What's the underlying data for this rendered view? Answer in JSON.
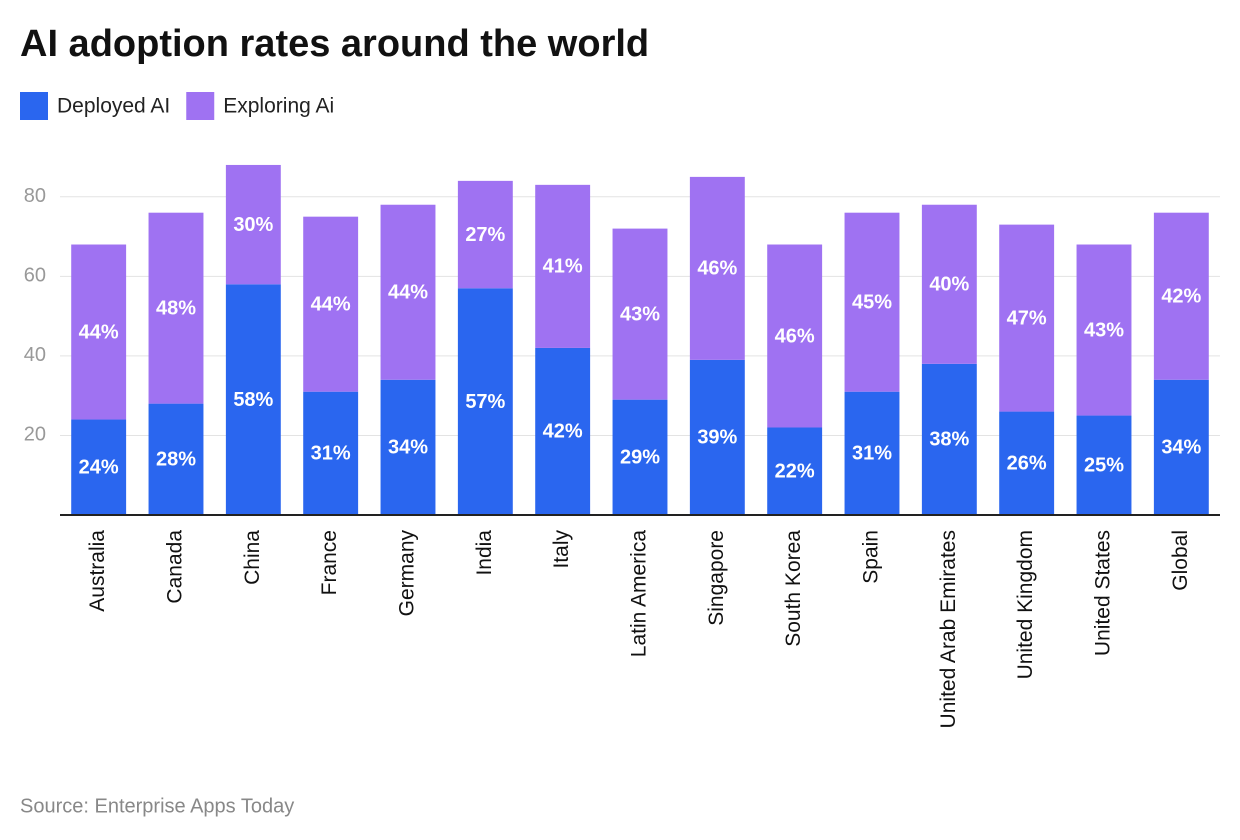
{
  "chart_data": {
    "type": "stacked_bar",
    "title": "AI adoption rates around the world",
    "source": "Source: Enterprise Apps Today",
    "categories": [
      "Australia",
      "Canada",
      "China",
      "France",
      "Germany",
      "India",
      "Italy",
      "Latin America",
      "Singapore",
      "South Korea",
      "Spain",
      "United Arab Emirates",
      "United Kingdom",
      "United States",
      "Global"
    ],
    "series": [
      {
        "name": "Deployed AI",
        "color": "#2a66ef",
        "values": [
          24,
          28,
          58,
          31,
          34,
          57,
          42,
          29,
          39,
          22,
          31,
          38,
          26,
          25,
          34
        ],
        "value_labels": [
          "24%",
          "28%",
          "58%",
          "31%",
          "34%",
          "57%",
          "42%",
          "29%",
          "39%",
          "22%",
          "31%",
          "38%",
          "26%",
          "25%",
          "34%"
        ]
      },
      {
        "name": "Exploring Ai",
        "color": "#9f72f2",
        "values": [
          44,
          48,
          30,
          44,
          44,
          27,
          41,
          43,
          46,
          46,
          45,
          40,
          47,
          43,
          42
        ],
        "value_labels": [
          "44%",
          "48%",
          "30%",
          "44%",
          "44%",
          "27%",
          "41%",
          "43%",
          "46%",
          "46%",
          "45%",
          "40%",
          "47%",
          "43%",
          "42%"
        ]
      }
    ],
    "ylim": [
      0,
      90
    ],
    "yticks": [
      20,
      40,
      60,
      80
    ],
    "grid": true,
    "legend": "top-left"
  }
}
